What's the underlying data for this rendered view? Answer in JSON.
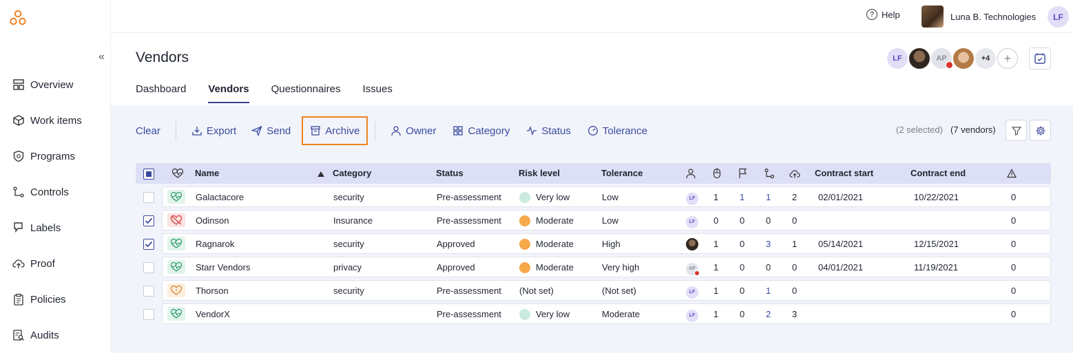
{
  "sidebar": {
    "collapse_glyph": "«",
    "items": [
      {
        "label": "Overview",
        "icon": "grid-icon"
      },
      {
        "label": "Work items",
        "icon": "box-icon"
      },
      {
        "label": "Programs",
        "icon": "shield-icon"
      },
      {
        "label": "Controls",
        "icon": "controls-icon"
      },
      {
        "label": "Labels",
        "icon": "tag-icon"
      },
      {
        "label": "Proof",
        "icon": "cloud-upload-icon"
      },
      {
        "label": "Policies",
        "icon": "clipboard-icon"
      },
      {
        "label": "Audits",
        "icon": "document-search-icon"
      }
    ]
  },
  "header": {
    "help_label": "Help",
    "org_name": "Luna B. Technologies",
    "user_initials": "LF"
  },
  "page": {
    "title": "Vendors",
    "tabs": [
      {
        "label": "Dashboard",
        "active": false
      },
      {
        "label": "Vendors",
        "active": true
      },
      {
        "label": "Questionnaires",
        "active": false
      },
      {
        "label": "Issues",
        "active": false
      }
    ],
    "team": {
      "initials_1": "LF",
      "initials_2": "AP",
      "more": "+4",
      "add": "+"
    }
  },
  "toolbar": {
    "clear": "Clear",
    "export": "Export",
    "send": "Send",
    "archive": "Archive",
    "owner": "Owner",
    "category": "Category",
    "status": "Status",
    "tolerance": "Tolerance",
    "selected": "(2 selected)",
    "count": "(7 vendors)"
  },
  "table": {
    "headers": {
      "name": "Name",
      "category": "Category",
      "status": "Status",
      "risk": "Risk level",
      "tolerance": "Tolerance",
      "contract_start": "Contract start",
      "contract_end": "Contract end"
    },
    "rows": [
      {
        "checked": false,
        "icon": "heart-pulse-icon",
        "name": "Galactacore",
        "category": "security",
        "status": "Pre-assessment",
        "risk": "Very low",
        "tolerance": "Low",
        "owner": "LF",
        "c1": "1",
        "c2": "1",
        "c3": "1",
        "c4": "2",
        "start": "02/01/2021",
        "end": "10/22/2021",
        "issues": "0"
      },
      {
        "checked": true,
        "icon": "heart-broken-icon",
        "name": "Odinson",
        "category": "Insurance",
        "status": "Pre-assessment",
        "risk": "Moderate",
        "tolerance": "Low",
        "owner": "LF",
        "c1": "0",
        "c2": "0",
        "c3": "0",
        "c4": "0",
        "start": "",
        "end": "",
        "issues": "0"
      },
      {
        "checked": true,
        "icon": "heart-pulse-icon",
        "name": "Ragnarok",
        "category": "security",
        "status": "Approved",
        "risk": "Moderate",
        "tolerance": "High",
        "owner": "",
        "c1": "1",
        "c2": "0",
        "c3": "3",
        "c4": "1",
        "start": "05/14/2021",
        "end": "12/15/2021",
        "issues": "0"
      },
      {
        "checked": false,
        "icon": "heart-pulse-icon",
        "name": "Starr Vendors",
        "category": "privacy",
        "status": "Approved",
        "risk": "Moderate",
        "tolerance": "Very high",
        "owner": "AP",
        "c1": "1",
        "c2": "0",
        "c3": "0",
        "c4": "0",
        "start": "04/01/2021",
        "end": "11/19/2021",
        "issues": "0"
      },
      {
        "checked": false,
        "icon": "heart-icon",
        "name": "Thorson",
        "category": "security",
        "status": "Pre-assessment",
        "risk": "(Not set)",
        "tolerance": "(Not set)",
        "owner": "LF",
        "c1": "1",
        "c2": "0",
        "c3": "1",
        "c4": "0",
        "start": "",
        "end": "",
        "issues": "0"
      },
      {
        "checked": false,
        "icon": "heart-pulse-icon",
        "name": "VendorX",
        "category": "",
        "status": "Pre-assessment",
        "risk": "Very low",
        "tolerance": "Moderate",
        "owner": "LF",
        "c1": "1",
        "c2": "0",
        "c3": "2",
        "c4": "3",
        "start": "",
        "end": "",
        "issues": "0"
      }
    ]
  },
  "colors": {
    "accent": "#3a4a9e",
    "highlight": "#f0821e",
    "risk_low": "#c9ebe0",
    "risk_moderate": "#f5a94a"
  }
}
